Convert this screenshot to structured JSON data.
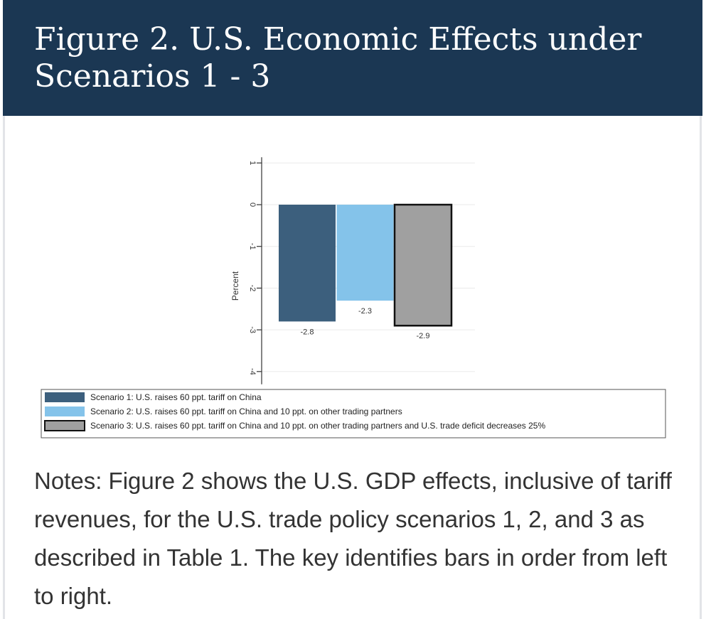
{
  "header": {
    "title": "Figure 2. U.S. Economic Effects under Scenarios 1 - 3"
  },
  "chart_data": {
    "type": "bar",
    "ylabel": "Percent",
    "ylim": [
      -4,
      1
    ],
    "yticks": [
      1,
      0,
      -1,
      -2,
      -3,
      -4
    ],
    "ytick_labels": [
      "1",
      "0",
      "-1",
      "-2",
      "-3",
      "-4"
    ],
    "grid": true,
    "legend_position": "bottom",
    "series": [
      {
        "name": "Scenario 1: U.S. raises 60 ppt. tariff on China",
        "values": [
          -2.8
        ],
        "label": "-2.8",
        "color": "#3c5f7d"
      },
      {
        "name": "Scenario 2: U.S. raises 60 ppt. tariff on China and 10 ppt. on other trading partners",
        "values": [
          -2.3
        ],
        "label": "-2.3",
        "color": "#84c3ea"
      },
      {
        "name": "Scenario 3: U.S. raises 60 ppt. tariff on China and 10 ppt. on other trading partners and U.S. trade deficit decreases 25%",
        "values": [
          -2.9
        ],
        "label": "-2.9",
        "color": "#a0a0a0"
      }
    ]
  },
  "notes": {
    "text": "Notes: Figure 2 shows the U.S. GDP effects, inclusive of tariff revenues, for the U.S. trade policy scenarios 1, 2, and 3 as described in Table 1. The key identifies bars in order from left to right."
  }
}
